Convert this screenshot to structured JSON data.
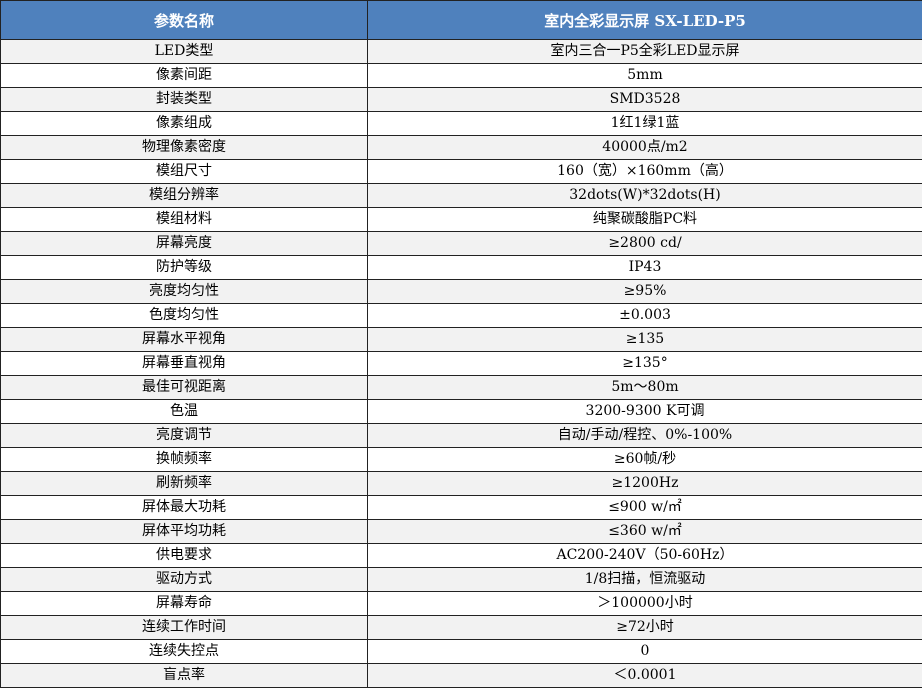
{
  "header": {
    "col1": "参数名称",
    "col2": "室内全彩显示屏 SX-LED-P5"
  },
  "colors": {
    "header_bg": "#4f81bd",
    "row_alt": "#f2f2f2"
  },
  "rows": [
    {
      "name": "LED类型",
      "value": "室内三合一P5全彩LED显示屏"
    },
    {
      "name": "像素间距",
      "value": "5mm"
    },
    {
      "name": "封装类型",
      "value": "SMD3528"
    },
    {
      "name": "像素组成",
      "value": "1红1绿1蓝"
    },
    {
      "name": "物理像素密度",
      "value": "40000点/m2"
    },
    {
      "name": "模组尺寸",
      "value": "160（宽）×160mm（高）"
    },
    {
      "name": "模组分辨率",
      "value": "32dots(W)*32dots(H)"
    },
    {
      "name": "模组材料",
      "value": "纯聚碳酸脂PC料"
    },
    {
      "name": "屏幕亮度",
      "value": "≥2800 cd/"
    },
    {
      "name": "防护等级",
      "value": "IP43"
    },
    {
      "name": "亮度均匀性",
      "value": "≥95%"
    },
    {
      "name": "色度均匀性",
      "value": "±0.003"
    },
    {
      "name": "屏幕水平视角",
      "value": "≥135"
    },
    {
      "name": "屏幕垂直视角",
      "value": "≥135°"
    },
    {
      "name": "最佳可视距离",
      "value": "5m～80m"
    },
    {
      "name": "色温",
      "value": "3200-9300 K可调"
    },
    {
      "name": "亮度调节",
      "value": "自动/手动/程控、0%-100%"
    },
    {
      "name": "换帧频率",
      "value": "≥60帧/秒"
    },
    {
      "name": "刷新频率",
      "value": "≥1200Hz"
    },
    {
      "name": "屏体最大功耗",
      "value": "≤900 w/㎡"
    },
    {
      "name": "屏体平均功耗",
      "value": "≤360 w/㎡"
    },
    {
      "name": "供电要求",
      "value": "AC200-240V（50-60Hz）"
    },
    {
      "name": "驱动方式",
      "value": "1/8扫描，恒流驱动"
    },
    {
      "name": "屏幕寿命",
      "value": "＞100000小时"
    },
    {
      "name": "连续工作时间",
      "value": "≥72小时"
    },
    {
      "name": "连续失控点",
      "value": "0"
    },
    {
      "name": "盲点率",
      "value": "＜0.0001"
    }
  ]
}
